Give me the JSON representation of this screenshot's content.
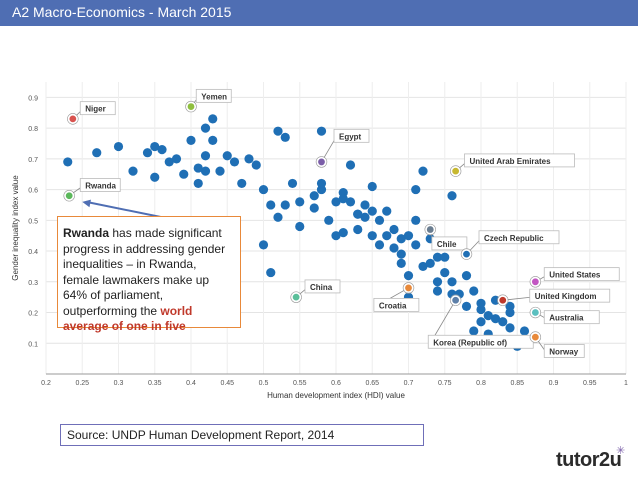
{
  "header": {
    "title": "A2 Macro-Economics - March 2015",
    "color": "#4f6eb3"
  },
  "callout": {
    "bold_lead": "Rwanda",
    "text": " has made significant progress in addressing gender inequalities – in Rwanda, female lawmakers make up 64% of parliament, outperforming the ",
    "highlight": "world average of one in five",
    "highlight_color": "#c0392b",
    "border_color": "#e8893a"
  },
  "source_text": "Source: UNDP Human Development Report, 2014",
  "logo": {
    "text": "tutor2u",
    "mark": "✳"
  },
  "chart_data": {
    "type": "scatter",
    "xlabel": "Human development index (HDI) value",
    "ylabel": "Gender inequality index value",
    "xlim": [
      0.2,
      1.0
    ],
    "ylim": [
      0.0,
      0.95
    ],
    "xticks": [
      "0.2",
      "0.25",
      "0.3",
      "0.35",
      "0.4",
      "0.45",
      "0.5",
      "0.55",
      "0.6",
      "0.65",
      "0.7",
      "0.75",
      "0.8",
      "0.85",
      "0.9",
      "0.95",
      "1"
    ],
    "yticks": [
      "0.1",
      "0.2",
      "0.3",
      "0.4",
      "0.5",
      "0.6",
      "0.7",
      "0.8",
      "0.9"
    ],
    "grid": true,
    "point_color": "#1f6fb5",
    "points": [
      [
        0.23,
        0.69
      ],
      [
        0.27,
        0.72
      ],
      [
        0.3,
        0.74
      ],
      [
        0.32,
        0.66
      ],
      [
        0.34,
        0.72
      ],
      [
        0.35,
        0.74
      ],
      [
        0.36,
        0.73
      ],
      [
        0.37,
        0.69
      ],
      [
        0.38,
        0.7
      ],
      [
        0.35,
        0.64
      ],
      [
        0.39,
        0.65
      ],
      [
        0.4,
        0.76
      ],
      [
        0.41,
        0.67
      ],
      [
        0.42,
        0.71
      ],
      [
        0.42,
        0.8
      ],
      [
        0.41,
        0.62
      ],
      [
        0.43,
        0.76
      ],
      [
        0.43,
        0.83
      ],
      [
        0.44,
        0.66
      ],
      [
        0.42,
        0.66
      ],
      [
        0.45,
        0.71
      ],
      [
        0.46,
        0.69
      ],
      [
        0.47,
        0.62
      ],
      [
        0.48,
        0.7
      ],
      [
        0.49,
        0.68
      ],
      [
        0.5,
        0.6
      ],
      [
        0.51,
        0.55
      ],
      [
        0.52,
        0.79
      ],
      [
        0.52,
        0.51
      ],
      [
        0.53,
        0.55
      ],
      [
        0.53,
        0.77
      ],
      [
        0.54,
        0.62
      ],
      [
        0.55,
        0.56
      ],
      [
        0.55,
        0.48
      ],
      [
        0.57,
        0.58
      ],
      [
        0.57,
        0.54
      ],
      [
        0.58,
        0.6
      ],
      [
        0.58,
        0.79
      ],
      [
        0.58,
        0.62
      ],
      [
        0.59,
        0.5
      ],
      [
        0.6,
        0.56
      ],
      [
        0.6,
        0.45
      ],
      [
        0.61,
        0.59
      ],
      [
        0.61,
        0.46
      ],
      [
        0.62,
        0.56
      ],
      [
        0.62,
        0.68
      ],
      [
        0.63,
        0.52
      ],
      [
        0.63,
        0.47
      ],
      [
        0.64,
        0.55
      ],
      [
        0.64,
        0.51
      ],
      [
        0.65,
        0.45
      ],
      [
        0.65,
        0.53
      ],
      [
        0.65,
        0.61
      ],
      [
        0.66,
        0.5
      ],
      [
        0.66,
        0.42
      ],
      [
        0.67,
        0.45
      ],
      [
        0.67,
        0.53
      ],
      [
        0.68,
        0.47
      ],
      [
        0.68,
        0.41
      ],
      [
        0.69,
        0.44
      ],
      [
        0.69,
        0.36
      ],
      [
        0.7,
        0.45
      ],
      [
        0.7,
        0.32
      ],
      [
        0.71,
        0.5
      ],
      [
        0.71,
        0.42
      ],
      [
        0.72,
        0.35
      ],
      [
        0.72,
        0.66
      ],
      [
        0.73,
        0.44
      ],
      [
        0.73,
        0.36
      ],
      [
        0.74,
        0.27
      ],
      [
        0.74,
        0.38
      ],
      [
        0.74,
        0.3
      ],
      [
        0.75,
        0.33
      ],
      [
        0.75,
        0.38
      ],
      [
        0.76,
        0.3
      ],
      [
        0.76,
        0.58
      ],
      [
        0.77,
        0.26
      ],
      [
        0.78,
        0.32
      ],
      [
        0.78,
        0.22
      ],
      [
        0.79,
        0.27
      ],
      [
        0.8,
        0.21
      ],
      [
        0.8,
        0.17
      ],
      [
        0.81,
        0.19
      ],
      [
        0.81,
        0.13
      ],
      [
        0.82,
        0.24
      ],
      [
        0.82,
        0.18
      ],
      [
        0.83,
        0.17
      ],
      [
        0.83,
        0.11
      ],
      [
        0.84,
        0.22
      ],
      [
        0.84,
        0.15
      ],
      [
        0.85,
        0.09
      ],
      [
        0.86,
        0.1
      ],
      [
        0.86,
        0.14
      ],
      [
        0.84,
        0.2
      ],
      [
        0.79,
        0.14
      ],
      [
        0.8,
        0.23
      ],
      [
        0.7,
        0.25
      ],
      [
        0.71,
        0.6
      ],
      [
        0.76,
        0.26
      ],
      [
        0.5,
        0.42
      ],
      [
        0.51,
        0.33
      ],
      [
        0.61,
        0.57
      ],
      [
        0.63,
        0.52
      ],
      [
        0.69,
        0.39
      ]
    ],
    "highlighted": [
      {
        "name": "Niger",
        "x": 0.237,
        "y": 0.83,
        "color": "#d9534f",
        "label_pos": [
          0.25,
          0.86
        ]
      },
      {
        "name": "Rwanda",
        "x": 0.232,
        "y": 0.58,
        "color": "#5cb85c",
        "label_pos": [
          0.25,
          0.61
        ]
      },
      {
        "name": "Yemen",
        "x": 0.4,
        "y": 0.87,
        "color": "#8fbf3f",
        "label_pos": [
          0.41,
          0.9
        ]
      },
      {
        "name": "Egypt",
        "x": 0.58,
        "y": 0.69,
        "color": "#7b5ea8",
        "label_pos": [
          0.6,
          0.77
        ]
      },
      {
        "name": "United Arab Emirates",
        "x": 0.765,
        "y": 0.66,
        "color": "#c7b830",
        "label_pos": [
          0.78,
          0.69
        ]
      },
      {
        "name": "Chile",
        "x": 0.73,
        "y": 0.47,
        "color": "#6a7d90",
        "label_pos": [
          0.735,
          0.42
        ]
      },
      {
        "name": "Czech Republic",
        "x": 0.78,
        "y": 0.39,
        "color": "#1f6fb5",
        "label_pos": [
          0.8,
          0.44
        ]
      },
      {
        "name": "China",
        "x": 0.545,
        "y": 0.25,
        "color": "#5bbf9a",
        "label_pos": [
          0.56,
          0.28
        ]
      },
      {
        "name": "Croatia",
        "x": 0.7,
        "y": 0.28,
        "color": "#e8893a",
        "label_pos": [
          0.655,
          0.22
        ]
      },
      {
        "name": "United States",
        "x": 0.875,
        "y": 0.3,
        "color": "#c256c2",
        "label_pos": [
          0.89,
          0.32
        ]
      },
      {
        "name": "United Kingdom",
        "x": 0.83,
        "y": 0.24,
        "color": "#c0392b",
        "label_pos": [
          0.87,
          0.25
        ]
      },
      {
        "name": "Australia",
        "x": 0.875,
        "y": 0.2,
        "color": "#5bbfbf",
        "label_pos": [
          0.89,
          0.18
        ]
      },
      {
        "name": "Korea (Republic of)",
        "x": 0.765,
        "y": 0.24,
        "color": "#5d7fa8",
        "label_pos": [
          0.73,
          0.1
        ]
      },
      {
        "name": "Norway",
        "x": 0.875,
        "y": 0.12,
        "color": "#e8893a",
        "label_pos": [
          0.89,
          0.07
        ]
      }
    ],
    "annotation_arrow": {
      "from": [
        0.36,
        0.51
      ],
      "to": [
        0.25,
        0.56
      ],
      "color": "#4f6eb3"
    }
  }
}
